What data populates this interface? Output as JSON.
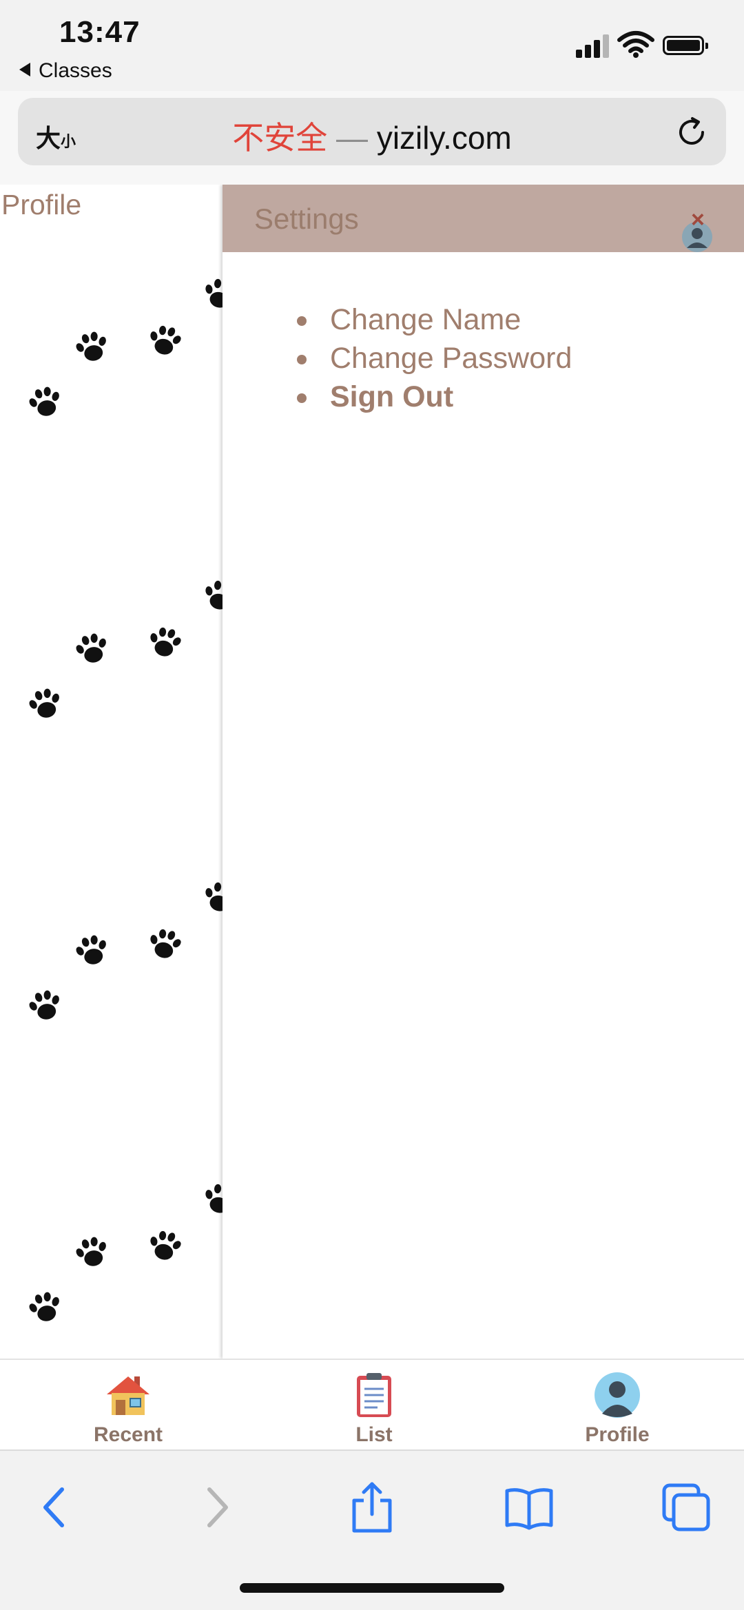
{
  "status_bar": {
    "time": "13:47",
    "back_app": "Classes",
    "icons": [
      "signal-icon",
      "wifi-icon",
      "battery-icon"
    ]
  },
  "address_bar": {
    "text_size_big": "大",
    "text_size_small": "小",
    "insecure_label": "不安全",
    "separator": "—",
    "domain": "yizily.com",
    "reload_icon": "reload-icon"
  },
  "page": {
    "profile_heading": "Profile",
    "settings": {
      "title": "Settings",
      "close_label": "×",
      "menu": [
        {
          "label": "Change Name",
          "bold": false
        },
        {
          "label": "Change Password",
          "bold": false
        },
        {
          "label": "Sign Out",
          "bold": true
        }
      ]
    }
  },
  "tab_bar": {
    "tabs": [
      {
        "label": "Recent",
        "icon": "house-icon"
      },
      {
        "label": "List",
        "icon": "clipboard-icon"
      },
      {
        "label": "Profile",
        "icon": "avatar-icon"
      }
    ]
  },
  "toolbar": {
    "icons": [
      "back-arrow-icon",
      "forward-arrow-icon",
      "share-icon",
      "bookmarks-icon",
      "tabs-icon"
    ]
  },
  "colors": {
    "accent_text": "#a07e6d",
    "panel_header": "#bfa8a0",
    "insecure_red": "#e0443a",
    "safari_blue": "#2f7bf5"
  }
}
